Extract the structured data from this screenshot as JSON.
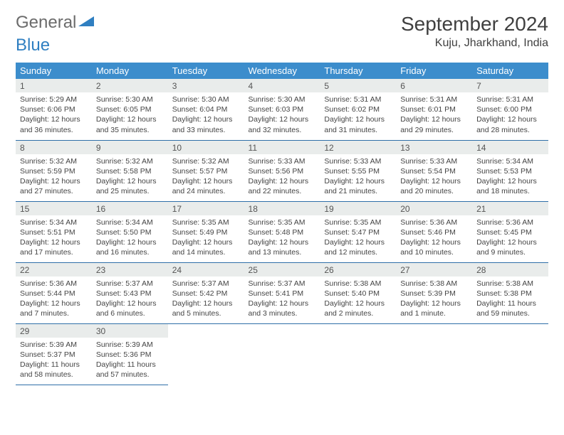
{
  "logo": {
    "text1": "General",
    "text2": "Blue"
  },
  "title": "September 2024",
  "location": "Kuju, Jharkhand, India",
  "colors": {
    "header_bg": "#3c8dcc",
    "header_text": "#ffffff",
    "daynum_bg": "#e9eceb",
    "row_border": "#2f6fa8",
    "logo_gray": "#6b6b6b",
    "logo_blue": "#2f7fc1"
  },
  "weekdays": [
    "Sunday",
    "Monday",
    "Tuesday",
    "Wednesday",
    "Thursday",
    "Friday",
    "Saturday"
  ],
  "days": [
    {
      "n": 1,
      "sr": "5:29 AM",
      "ss": "6:06 PM",
      "dl": "12 hours and 36 minutes."
    },
    {
      "n": 2,
      "sr": "5:30 AM",
      "ss": "6:05 PM",
      "dl": "12 hours and 35 minutes."
    },
    {
      "n": 3,
      "sr": "5:30 AM",
      "ss": "6:04 PM",
      "dl": "12 hours and 33 minutes."
    },
    {
      "n": 4,
      "sr": "5:30 AM",
      "ss": "6:03 PM",
      "dl": "12 hours and 32 minutes."
    },
    {
      "n": 5,
      "sr": "5:31 AM",
      "ss": "6:02 PM",
      "dl": "12 hours and 31 minutes."
    },
    {
      "n": 6,
      "sr": "5:31 AM",
      "ss": "6:01 PM",
      "dl": "12 hours and 29 minutes."
    },
    {
      "n": 7,
      "sr": "5:31 AM",
      "ss": "6:00 PM",
      "dl": "12 hours and 28 minutes."
    },
    {
      "n": 8,
      "sr": "5:32 AM",
      "ss": "5:59 PM",
      "dl": "12 hours and 27 minutes."
    },
    {
      "n": 9,
      "sr": "5:32 AM",
      "ss": "5:58 PM",
      "dl": "12 hours and 25 minutes."
    },
    {
      "n": 10,
      "sr": "5:32 AM",
      "ss": "5:57 PM",
      "dl": "12 hours and 24 minutes."
    },
    {
      "n": 11,
      "sr": "5:33 AM",
      "ss": "5:56 PM",
      "dl": "12 hours and 22 minutes."
    },
    {
      "n": 12,
      "sr": "5:33 AM",
      "ss": "5:55 PM",
      "dl": "12 hours and 21 minutes."
    },
    {
      "n": 13,
      "sr": "5:33 AM",
      "ss": "5:54 PM",
      "dl": "12 hours and 20 minutes."
    },
    {
      "n": 14,
      "sr": "5:34 AM",
      "ss": "5:53 PM",
      "dl": "12 hours and 18 minutes."
    },
    {
      "n": 15,
      "sr": "5:34 AM",
      "ss": "5:51 PM",
      "dl": "12 hours and 17 minutes."
    },
    {
      "n": 16,
      "sr": "5:34 AM",
      "ss": "5:50 PM",
      "dl": "12 hours and 16 minutes."
    },
    {
      "n": 17,
      "sr": "5:35 AM",
      "ss": "5:49 PM",
      "dl": "12 hours and 14 minutes."
    },
    {
      "n": 18,
      "sr": "5:35 AM",
      "ss": "5:48 PM",
      "dl": "12 hours and 13 minutes."
    },
    {
      "n": 19,
      "sr": "5:35 AM",
      "ss": "5:47 PM",
      "dl": "12 hours and 12 minutes."
    },
    {
      "n": 20,
      "sr": "5:36 AM",
      "ss": "5:46 PM",
      "dl": "12 hours and 10 minutes."
    },
    {
      "n": 21,
      "sr": "5:36 AM",
      "ss": "5:45 PM",
      "dl": "12 hours and 9 minutes."
    },
    {
      "n": 22,
      "sr": "5:36 AM",
      "ss": "5:44 PM",
      "dl": "12 hours and 7 minutes."
    },
    {
      "n": 23,
      "sr": "5:37 AM",
      "ss": "5:43 PM",
      "dl": "12 hours and 6 minutes."
    },
    {
      "n": 24,
      "sr": "5:37 AM",
      "ss": "5:42 PM",
      "dl": "12 hours and 5 minutes."
    },
    {
      "n": 25,
      "sr": "5:37 AM",
      "ss": "5:41 PM",
      "dl": "12 hours and 3 minutes."
    },
    {
      "n": 26,
      "sr": "5:38 AM",
      "ss": "5:40 PM",
      "dl": "12 hours and 2 minutes."
    },
    {
      "n": 27,
      "sr": "5:38 AM",
      "ss": "5:39 PM",
      "dl": "12 hours and 1 minute."
    },
    {
      "n": 28,
      "sr": "5:38 AM",
      "ss": "5:38 PM",
      "dl": "11 hours and 59 minutes."
    },
    {
      "n": 29,
      "sr": "5:39 AM",
      "ss": "5:37 PM",
      "dl": "11 hours and 58 minutes."
    },
    {
      "n": 30,
      "sr": "5:39 AM",
      "ss": "5:36 PM",
      "dl": "11 hours and 57 minutes."
    }
  ],
  "labels": {
    "sunrise": "Sunrise:",
    "sunset": "Sunset:",
    "daylight": "Daylight:"
  },
  "start_weekday": 0,
  "total_cells": 35
}
